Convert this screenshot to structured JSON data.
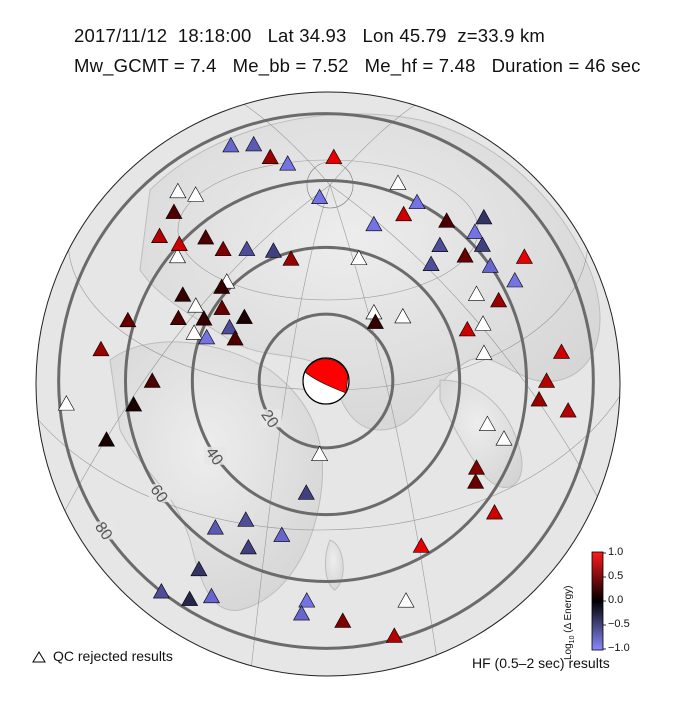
{
  "header": {
    "date": "2017/11/12",
    "time": "18:18:00",
    "lat_label": "Lat 34.93",
    "lon_label": "Lon 45.79",
    "depth_label": "z=33.9 km",
    "line2": "Mw_GCMT = 7.4   Me_bb = 7.52   Me_hf = 7.48   Duration = 46 sec"
  },
  "event": {
    "lat": 34.93,
    "lon": 45.79,
    "depth_km": 33.9
  },
  "distance_rings": {
    "labels": [
      "20",
      "40",
      "60",
      "80"
    ],
    "values_deg": [
      20,
      40,
      60,
      80
    ],
    "color": "#6b6b6b"
  },
  "legend": {
    "qc_rejected": "QC rejected results",
    "band": "HF (0.5–2 sec) results"
  },
  "colorbar": {
    "title": "Log10 (Δ Energy)",
    "title_main": "Log",
    "title_sub": "10",
    "title_rest": " (Δ Energy)",
    "ticks": [
      "1.0",
      "0.5",
      "0.0",
      "−0.5",
      "−1.0"
    ],
    "range": [
      -1.0,
      1.0
    ],
    "colors": {
      "high": "#ff0000",
      "mid": "#000000",
      "low": "#8080ff"
    }
  },
  "stations": [
    {
      "az": 338,
      "dist": 76,
      "v": -0.8
    },
    {
      "az": 343,
      "dist": 74,
      "v": -0.7
    },
    {
      "az": 346,
      "dist": 69,
      "v": 0.6
    },
    {
      "az": 350,
      "dist": 66,
      "v": -0.9
    },
    {
      "az": 358,
      "dist": 55,
      "v": -0.9
    },
    {
      "az": 2,
      "dist": 67,
      "v": 0.9
    },
    {
      "az": 318,
      "dist": 68,
      "v": 0.3
    },
    {
      "az": 311,
      "dist": 66,
      "v": 0.7
    },
    {
      "az": 313,
      "dist": 60,
      "v": 0.8
    },
    {
      "az": 320,
      "dist": 56,
      "v": 0.3
    },
    {
      "az": 322,
      "dist": 50,
      "v": 0.5
    },
    {
      "az": 329,
      "dist": 46,
      "v": -0.6
    },
    {
      "az": 338,
      "dist": 42,
      "v": -0.5
    },
    {
      "az": 344,
      "dist": 38,
      "v": 0.6
    },
    {
      "az": 17,
      "dist": 49,
      "v": -0.9
    },
    {
      "az": 25,
      "dist": 55,
      "v": 0.8
    },
    {
      "az": 27,
      "dist": 60,
      "v": -0.9
    },
    {
      "az": 37,
      "dist": 60,
      "v": 0.3
    },
    {
      "az": 40,
      "dist": 53,
      "v": -0.6
    },
    {
      "az": 42,
      "dist": 47,
      "v": -0.6
    },
    {
      "az": 45,
      "dist": 63,
      "v": -0.9
    },
    {
      "az": 44,
      "dist": 68,
      "v": -0.4
    },
    {
      "az": 49,
      "dist": 62,
      "v": -0.5
    },
    {
      "az": 55,
      "dist": 60,
      "v": -0.8
    },
    {
      "az": 48,
      "dist": 56,
      "v": 0.4
    },
    {
      "az": 58,
      "dist": 70,
      "v": 0.9
    },
    {
      "az": 62,
      "dist": 64,
      "v": -0.9
    },
    {
      "az": 65,
      "dist": 57,
      "v": 0.6
    },
    {
      "az": 40,
      "dist": 23,
      "v": 0.2
    },
    {
      "az": 70,
      "dist": 45,
      "v": 0.8
    },
    {
      "az": 83,
      "dist": 71,
      "v": 0.8
    },
    {
      "az": 90,
      "dist": 66,
      "v": 0.7
    },
    {
      "az": 97,
      "dist": 73,
      "v": 0.7
    },
    {
      "az": 95,
      "dist": 64,
      "v": 0.6
    },
    {
      "az": 120,
      "dist": 52,
      "v": 0.5
    },
    {
      "az": 124,
      "dist": 54,
      "v": 0.4
    },
    {
      "az": 128,
      "dist": 64,
      "v": 0.8
    },
    {
      "az": 150,
      "dist": 57,
      "v": 0.9
    },
    {
      "az": 270,
      "dist": 52,
      "v": 0.3
    },
    {
      "az": 278,
      "dist": 68,
      "v": 0.6
    },
    {
      "az": 287,
      "dist": 62,
      "v": 0.4
    },
    {
      "az": 293,
      "dist": 48,
      "v": 0.3
    },
    {
      "az": 297,
      "dist": 41,
      "v": 0.2
    },
    {
      "az": 290,
      "dist": 38,
      "v": -0.9
    },
    {
      "az": 301,
      "dist": 50,
      "v": 0.2
    },
    {
      "az": 305,
      "dist": 38,
      "v": 0.4
    },
    {
      "az": 308,
      "dist": 31,
      "v": 0.1
    },
    {
      "az": 312,
      "dist": 42,
      "v": 0.2
    },
    {
      "az": 299,
      "dist": 33,
      "v": -0.6
    },
    {
      "az": 295,
      "dist": 30,
      "v": 0.3
    },
    {
      "az": 263,
      "dist": 58,
      "v": 0.1
    },
    {
      "az": 205,
      "dist": 55,
      "v": -0.5
    },
    {
      "az": 210,
      "dist": 48,
      "v": -0.6
    },
    {
      "az": 217,
      "dist": 55,
      "v": -0.7
    },
    {
      "az": 214,
      "dist": 68,
      "v": -0.4
    },
    {
      "az": 208,
      "dist": 73,
      "v": -0.8
    },
    {
      "az": 212,
      "dist": 77,
      "v": -0.3
    },
    {
      "az": 218,
      "dist": 80,
      "v": -0.6
    },
    {
      "az": 185,
      "dist": 66,
      "v": -0.9
    },
    {
      "az": 186,
      "dist": 70,
      "v": -0.8
    },
    {
      "az": 176,
      "dist": 72,
      "v": 0.5
    },
    {
      "az": 165,
      "dist": 79,
      "v": 0.7
    },
    {
      "az": 196,
      "dist": 48,
      "v": -0.8
    },
    {
      "az": 255,
      "dist": 68,
      "v": 0.1
    },
    {
      "az": 190,
      "dist": 34,
      "v": -0.5
    }
  ],
  "rejected_stations": [
    {
      "az": 322,
      "dist": 72
    },
    {
      "az": 325,
      "dist": 68
    },
    {
      "az": 310,
      "dist": 58
    },
    {
      "az": 300,
      "dist": 45
    },
    {
      "az": 290,
      "dist": 42
    },
    {
      "az": 35,
      "dist": 25
    },
    {
      "az": 50,
      "dist": 30
    },
    {
      "az": 60,
      "dist": 52
    },
    {
      "az": 70,
      "dist": 50
    },
    {
      "az": 80,
      "dist": 48
    },
    {
      "az": 105,
      "dist": 50
    },
    {
      "az": 108,
      "dist": 56
    },
    {
      "az": 185,
      "dist": 22
    },
    {
      "az": 160,
      "dist": 70
    },
    {
      "az": 265,
      "dist": 78
    },
    {
      "az": 20,
      "dist": 63
    },
    {
      "az": 15,
      "dist": 38
    },
    {
      "az": 315,
      "dist": 42
    }
  ]
}
